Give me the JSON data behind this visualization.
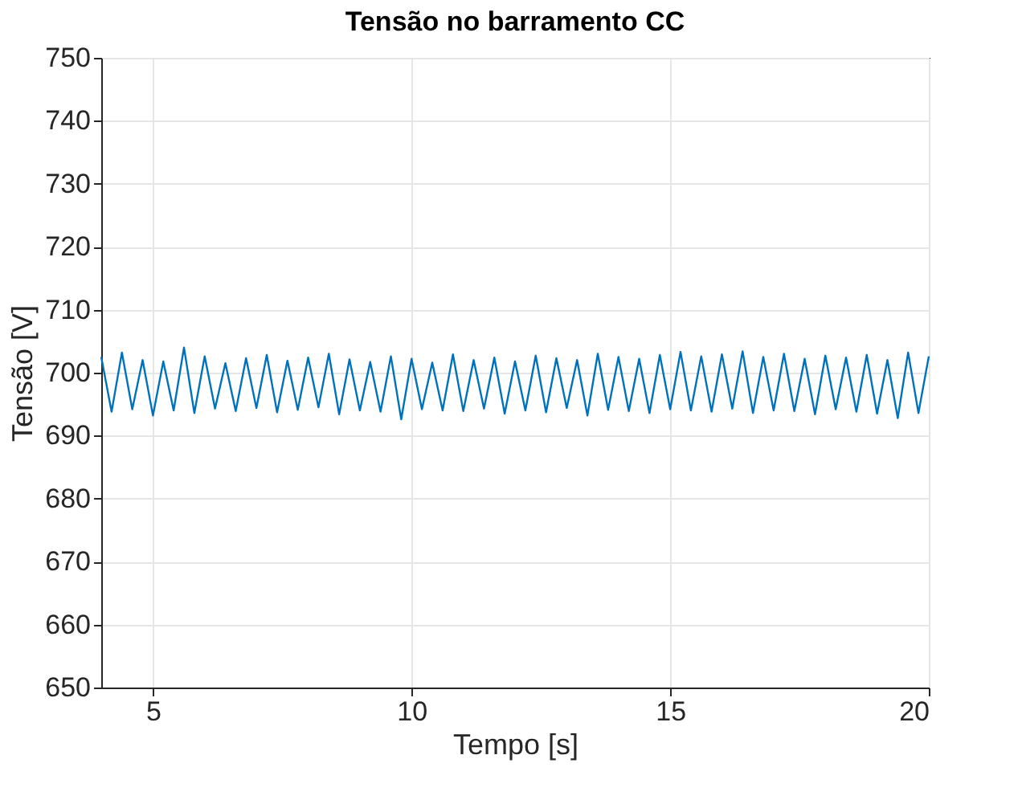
{
  "chart_data": {
    "type": "line",
    "title": "Tensão no barramento CC",
    "xlabel": "Tempo [s]",
    "ylabel": "Tensão [V]",
    "x": [
      4,
      4.2,
      4.4,
      4.6,
      4.8,
      5,
      5.2,
      5.4,
      5.6,
      5.8,
      6,
      6.2,
      6.4,
      6.6,
      6.8,
      7,
      7.2,
      7.4,
      7.6,
      7.8,
      8,
      8.2,
      8.4,
      8.6,
      8.8,
      9,
      9.2,
      9.4,
      9.6,
      9.8,
      10,
      10.2,
      10.4,
      10.6,
      10.8,
      11,
      11.2,
      11.4,
      11.6,
      11.8,
      12,
      12.2,
      12.4,
      12.6,
      12.8,
      13,
      13.2,
      13.4,
      13.6,
      13.8,
      14,
      14.2,
      14.4,
      14.6,
      14.8,
      15,
      15.2,
      15.4,
      15.6,
      15.8,
      16,
      16.2,
      16.4,
      16.6,
      16.8,
      17,
      17.2,
      17.4,
      17.6,
      17.8,
      18,
      18.2,
      18.4,
      18.6,
      18.8,
      19,
      19.2,
      19.4,
      19.6,
      19.8,
      20
    ],
    "series": [
      {
        "color": "#0072bd",
        "values": [
          702.5,
          693.8,
          703.2,
          694.2,
          702,
          693.2,
          701.8,
          694,
          704,
          693.6,
          702.6,
          694.3,
          701.5,
          693.9,
          702.3,
          694.4,
          702.8,
          693.7,
          701.9,
          694.1,
          702.4,
          694.5,
          703,
          693.4,
          702.1,
          694,
          701.7,
          693.8,
          702.6,
          692.6,
          702.2,
          694.2,
          701.6,
          694,
          702.9,
          693.9,
          702,
          694.3,
          702.4,
          693.5,
          701.8,
          694,
          702.7,
          693.7,
          702.3,
          694.4,
          702,
          693.2,
          703,
          694.1,
          702.5,
          693.9,
          702.2,
          693.6,
          702.8,
          694.2,
          703.3,
          694,
          702.6,
          693.8,
          702.9,
          694.3,
          703.4,
          693.6,
          702.5,
          694,
          703,
          693.9,
          702.2,
          693.4,
          702.7,
          694.2,
          702.4,
          693.8,
          702.8,
          693.5,
          702,
          692.8,
          703.2,
          693.6,
          702.6
        ]
      }
    ],
    "xlim": [
      4,
      20
    ],
    "xticks": [
      5,
      10,
      15,
      20
    ],
    "ylim": [
      650,
      750
    ],
    "yticks": [
      650,
      660,
      670,
      680,
      690,
      700,
      710,
      720,
      730,
      740,
      750
    ],
    "grid": true,
    "line_style": "solid",
    "marker": "none",
    "legend": false
  }
}
